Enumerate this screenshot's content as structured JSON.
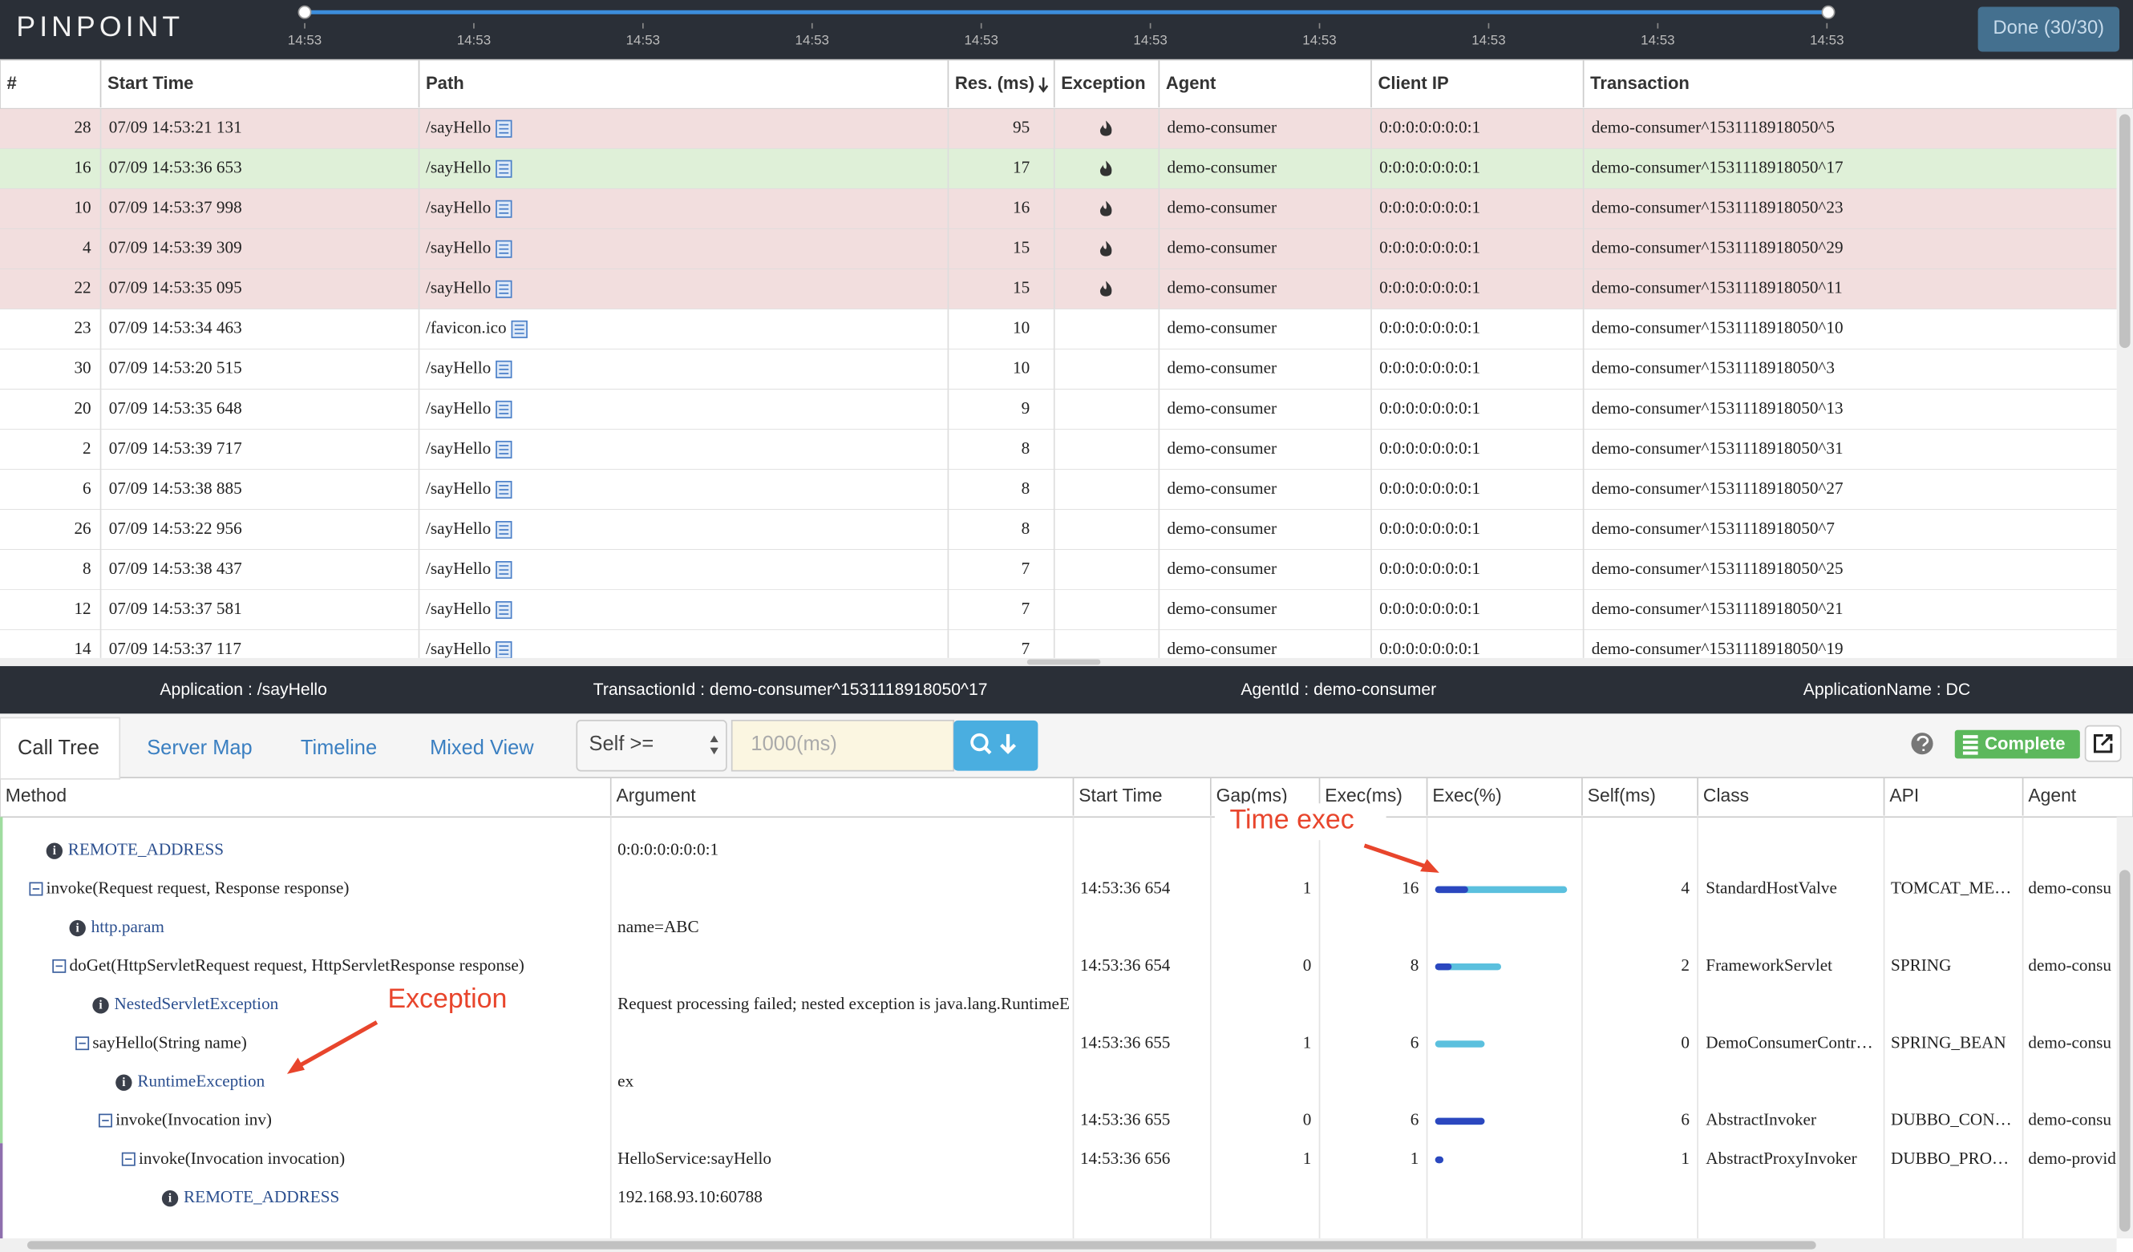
{
  "header": {
    "logo": "PINPOINT",
    "timeline_ticks": [
      "14:53",
      "14:53",
      "14:53",
      "14:53",
      "14:53",
      "14:53",
      "14:53",
      "14:53",
      "14:53",
      "14:53"
    ],
    "done_button": "Done (30/30)"
  },
  "transactions": {
    "columns": [
      "#",
      "Start Time",
      "Path",
      "Res. (ms)",
      "Exception",
      "Agent",
      "Client IP",
      "Transaction"
    ],
    "selected_row": 1,
    "rows": [
      [
        28,
        "07/09 14:53:21 131",
        "/sayHello",
        95,
        true,
        "demo-consumer",
        "0:0:0:0:0:0:0:1",
        "demo-consumer^1531118918050^5"
      ],
      [
        16,
        "07/09 14:53:36 653",
        "/sayHello",
        17,
        true,
        "demo-consumer",
        "0:0:0:0:0:0:0:1",
        "demo-consumer^1531118918050^17"
      ],
      [
        10,
        "07/09 14:53:37 998",
        "/sayHello",
        16,
        true,
        "demo-consumer",
        "0:0:0:0:0:0:0:1",
        "demo-consumer^1531118918050^23"
      ],
      [
        4,
        "07/09 14:53:39 309",
        "/sayHello",
        15,
        true,
        "demo-consumer",
        "0:0:0:0:0:0:0:1",
        "demo-consumer^1531118918050^29"
      ],
      [
        22,
        "07/09 14:53:35 095",
        "/sayHello",
        15,
        true,
        "demo-consumer",
        "0:0:0:0:0:0:0:1",
        "demo-consumer^1531118918050^11"
      ],
      [
        23,
        "07/09 14:53:34 463",
        "/favicon.ico",
        10,
        false,
        "demo-consumer",
        "0:0:0:0:0:0:0:1",
        "demo-consumer^1531118918050^10"
      ],
      [
        30,
        "07/09 14:53:20 515",
        "/sayHello",
        10,
        false,
        "demo-consumer",
        "0:0:0:0:0:0:0:1",
        "demo-consumer^1531118918050^3"
      ],
      [
        20,
        "07/09 14:53:35 648",
        "/sayHello",
        9,
        false,
        "demo-consumer",
        "0:0:0:0:0:0:0:1",
        "demo-consumer^1531118918050^13"
      ],
      [
        2,
        "07/09 14:53:39 717",
        "/sayHello",
        8,
        false,
        "demo-consumer",
        "0:0:0:0:0:0:0:1",
        "demo-consumer^1531118918050^31"
      ],
      [
        6,
        "07/09 14:53:38 885",
        "/sayHello",
        8,
        false,
        "demo-consumer",
        "0:0:0:0:0:0:0:1",
        "demo-consumer^1531118918050^27"
      ],
      [
        26,
        "07/09 14:53:22 956",
        "/sayHello",
        8,
        false,
        "demo-consumer",
        "0:0:0:0:0:0:0:1",
        "demo-consumer^1531118918050^7"
      ],
      [
        8,
        "07/09 14:53:38 437",
        "/sayHello",
        7,
        false,
        "demo-consumer",
        "0:0:0:0:0:0:0:1",
        "demo-consumer^1531118918050^25"
      ],
      [
        12,
        "07/09 14:53:37 581",
        "/sayHello",
        7,
        false,
        "demo-consumer",
        "0:0:0:0:0:0:0:1",
        "demo-consumer^1531118918050^21"
      ],
      [
        14,
        "07/09 14:53:37 117",
        "/sayHello",
        7,
        false,
        "demo-consumer",
        "0:0:0:0:0:0:0:1",
        "demo-consumer^1531118918050^19"
      ]
    ]
  },
  "info_bar": [
    "Application : /sayHello",
    "TransactionId : demo-consumer^1531118918050^17",
    "AgentId : demo-consumer",
    "ApplicationName : DC"
  ],
  "toolbar": {
    "tabs": [
      "Call Tree",
      "Server Map",
      "Timeline",
      "Mixed View"
    ],
    "active_tab": 0,
    "filter_select": "Self >=",
    "filter_placeholder": "1000(ms)",
    "complete_button": "Complete"
  },
  "call_tree": {
    "columns": [
      "Method",
      "Argument",
      "Start Time",
      "Gap(ms)",
      "Exec(ms)",
      "Exec(%)",
      "Self(ms)",
      "Class",
      "API",
      "Agent"
    ],
    "rows": [
      {
        "kind": "info",
        "level": 0,
        "method": "REMOTE_ADDRESS",
        "argument": "0:0:0:0:0:0:0:1"
      },
      {
        "kind": "method",
        "level": 0,
        "method": "invoke(Request request, Response response)",
        "start_time": "14:53:36 654",
        "gap": 1,
        "exec": 16,
        "self": 4,
        "class": "StandardHostValve",
        "api": "TOMCAT_ME…",
        "agent": "demo-consu"
      },
      {
        "kind": "info",
        "level": 1,
        "method": "http.param",
        "argument": "name=ABC"
      },
      {
        "kind": "method",
        "level": 1,
        "method": "doGet(HttpServletRequest request, HttpServletResponse response)",
        "start_time": "14:53:36 654",
        "gap": 0,
        "exec": 8,
        "self": 2,
        "class": "FrameworkServlet",
        "api": "SPRING",
        "agent": "demo-consu"
      },
      {
        "kind": "info",
        "level": 2,
        "method": "NestedServletException",
        "argument": "Request processing failed; nested exception is java.lang.RuntimeE"
      },
      {
        "kind": "method",
        "level": 2,
        "method": "sayHello(String name)",
        "start_time": "14:53:36 655",
        "gap": 1,
        "exec": 6,
        "self": 0,
        "class": "DemoConsumerContr…",
        "api": "SPRING_BEAN",
        "agent": "demo-consu"
      },
      {
        "kind": "info",
        "level": 3,
        "method": "RuntimeException",
        "argument": "ex"
      },
      {
        "kind": "method",
        "level": 3,
        "method": "invoke(Invocation inv)",
        "start_time": "14:53:36 655",
        "gap": 0,
        "exec": 6,
        "self": 6,
        "class": "AbstractInvoker",
        "api": "DUBBO_CON…",
        "agent": "demo-consu"
      },
      {
        "kind": "method",
        "level": 4,
        "method": "invoke(Invocation invocation)",
        "argument": "HelloService:sayHello",
        "start_time": "14:53:36 656",
        "gap": 1,
        "exec": 1,
        "self": 1,
        "class": "AbstractProxyInvoker",
        "api": "DUBBO_PRO…",
        "agent": "demo-provid"
      },
      {
        "kind": "info",
        "level": 5,
        "method": "REMOTE_ADDRESS",
        "argument": "192.168.93.10:60788"
      }
    ]
  },
  "annotations": [
    "Time exec",
    "Exception"
  ]
}
